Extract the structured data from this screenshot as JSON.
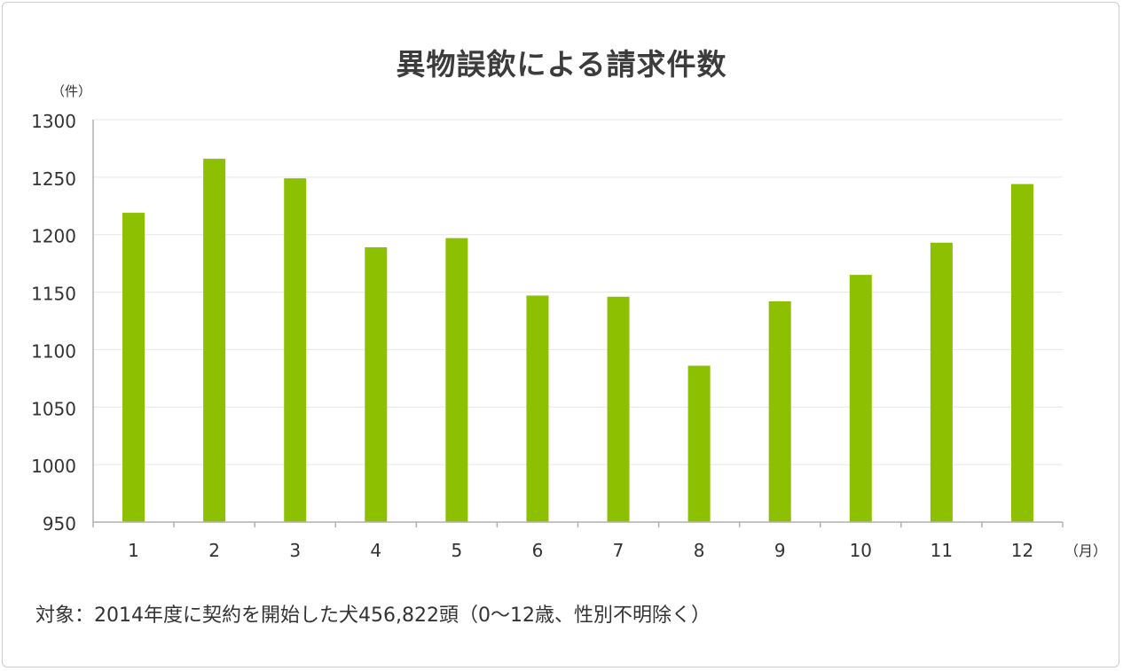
{
  "chart_data": {
    "type": "bar",
    "title": "異物誤飲による請求件数",
    "ylabel": "（件）",
    "xlabel": "（月）",
    "categories": [
      "1",
      "2",
      "3",
      "4",
      "5",
      "6",
      "7",
      "8",
      "9",
      "10",
      "11",
      "12"
    ],
    "series": [
      {
        "values": [
          1219,
          1266,
          1249,
          1189,
          1197,
          1147,
          1146,
          1086,
          1142,
          1165,
          1193,
          1244
        ]
      }
    ],
    "ylim": [
      950,
      1300
    ],
    "yticks": [
      950,
      1000,
      1050,
      1100,
      1150,
      1200,
      1250,
      1300
    ],
    "grid": true,
    "colors": {
      "bar": "#8cc000",
      "grid": "#e6e6e6",
      "axis": "#b0b0b0",
      "text": "#333333"
    }
  },
  "footnote": "対象：2014年度に契約を開始した犬456,822頭（0～12歳、性別不明除く）"
}
